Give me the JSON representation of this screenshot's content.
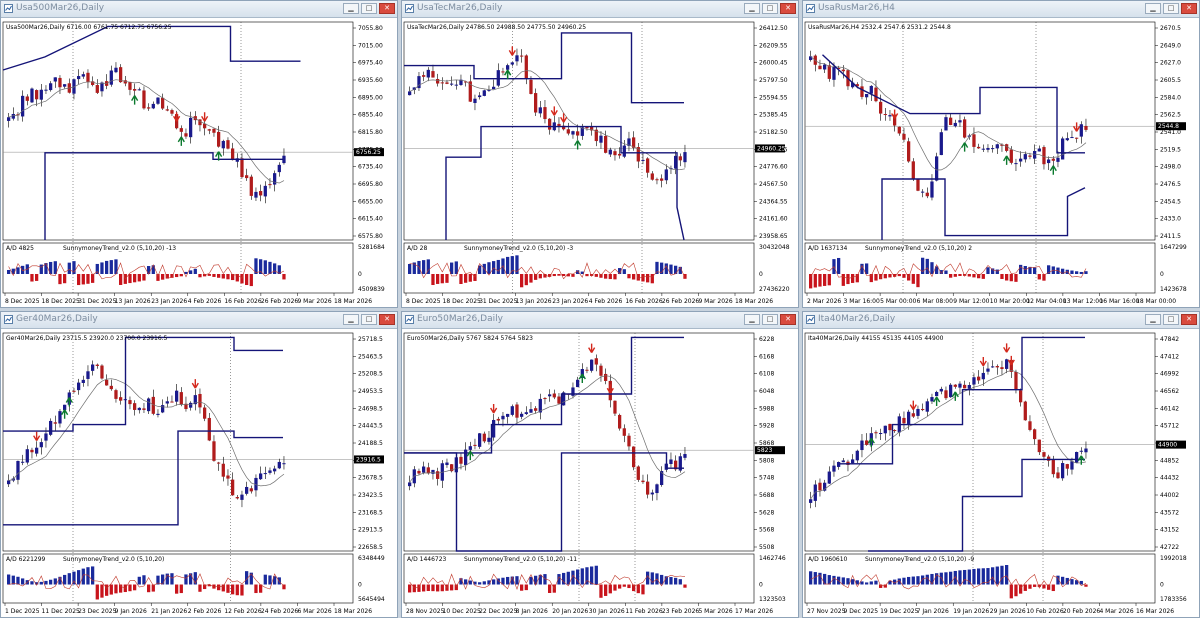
{
  "windows": [
    {
      "title": "Usa500Mar26,Daily",
      "info": "Usa500Mar26,Daily  6716.00 6761.75 6712.75 6756.25",
      "ind_label": "A/D 4825",
      "ind_name": "SunnymoneyTrend_v2.0 (5,10,20) -13",
      "price_labels": [
        "7055.80",
        "7015.00",
        "6975.40",
        "6935.60",
        "6895.00",
        "6855.40",
        "6815.80",
        "6775.00",
        "6735.40",
        "6695.80",
        "6655.00",
        "6615.40",
        "6575.80"
      ],
      "current_price": "6756.25",
      "ind_scale": [
        "5281684",
        "0",
        "4509839"
      ],
      "dates": [
        "8 Dec 2025",
        "18 Dec 2025",
        "31 Dec 2025",
        "13 Jan 2026",
        "23 Jan 2026",
        "4 Feb 2026",
        "16 Feb 2026",
        "26 Feb 2026",
        "9 Mar 2026",
        "18 Mar 2026"
      ]
    },
    {
      "title": "UsaTecMar26,Daily",
      "info": "UsaTecMar26,Daily  24786.50 24988.50 24775.50 24960.25",
      "ind_label": "A/D 28",
      "ind_name": "SunnymoneyTrend_v2.0 (5,10,20) -3",
      "price_labels": [
        "26412.50",
        "26209.55",
        "26000.45",
        "25797.50",
        "25594.55",
        "25385.45",
        "25182.50",
        "24979.55",
        "24776.60",
        "24567.50",
        "24364.55",
        "24161.60",
        "23958.65"
      ],
      "current_price": "24960.25",
      "ind_scale": [
        "30432048",
        "0",
        "27436220"
      ],
      "dates": [
        "8 Dec 2025",
        "18 Dec 2025",
        "31 Dec 2025",
        "13 Jan 2026",
        "23 Jan 2026",
        "4 Feb 2026",
        "16 Feb 2026",
        "26 Feb 2026",
        "9 Mar 2026",
        "18 Mar 2026"
      ]
    },
    {
      "title": "UsaRusMar26,H4",
      "info": "UsaRusMar26,H4  2532.4 2547.6 2531.2 2544.8",
      "ind_label": "A/D 1637134",
      "ind_name": "SunnymoneyTrend_v2.0 (5,10,20) 2",
      "price_labels": [
        "2670.5",
        "2649.0",
        "2627.0",
        "2605.5",
        "2584.0",
        "2562.5",
        "2541.0",
        "2519.5",
        "2498.0",
        "2476.5",
        "2454.5",
        "2433.0",
        "2411.5"
      ],
      "current_price": "2544.8",
      "ind_scale": [
        "1647299",
        "0",
        "1423678"
      ],
      "dates": [
        "2 Mar 2026",
        "3 Mar 16:00",
        "5 Mar 00:00",
        "6 Mar 08:00",
        "9 Mar 12:00",
        "10 Mar 20:00",
        "12 Mar 04:00",
        "13 Mar 12:00",
        "16 Mar 16:00",
        "18 Mar 00:00"
      ]
    },
    {
      "title": "Ger40Mar26,Daily",
      "info": "Ger40Mar26,Daily  23715.5 23920.0 23700.0 23916.5",
      "ind_label": "A/D 6221299",
      "ind_name": "SunnymoneyTrend_v2.0 (5,10,20)",
      "price_labels": [
        "25718.5",
        "25463.5",
        "25208.5",
        "24953.5",
        "24698.5",
        "24443.5",
        "24188.5",
        "23933.5",
        "23678.5",
        "23423.5",
        "23168.5",
        "22913.5",
        "22658.5"
      ],
      "current_price": "23916.5",
      "ind_scale": [
        "6348449",
        "0",
        "5645494"
      ],
      "dates": [
        "1 Dec 2025",
        "11 Dec 2025",
        "23 Dec 2025",
        "9 Jan 2026",
        "21 Jan 2026",
        "2 Feb 2026",
        "12 Feb 2026",
        "24 Feb 2026",
        "6 Mar 2026",
        "18 Mar 2026"
      ]
    },
    {
      "title": "Euro50Mar26,Daily",
      "info": "Euro50Mar26,Daily  5767 5824 5764 5823",
      "ind_label": "A/D 1446723",
      "ind_name": "SunnymoneyTrend_v2.0 (5,10,20) -11",
      "price_labels": [
        "6228",
        "6168",
        "6108",
        "6048",
        "5988",
        "5928",
        "5868",
        "5808",
        "5748",
        "5688",
        "5628",
        "5568",
        "5508"
      ],
      "current_price": "5823",
      "ind_scale": [
        "1462746",
        "0",
        "1323503"
      ],
      "dates": [
        "28 Nov 2025",
        "10 Dec 2025",
        "22 Dec 2025",
        "8 Jan 2026",
        "20 Jan 2026",
        "30 Jan 2026",
        "11 Feb 2026",
        "23 Feb 2026",
        "5 Mar 2026",
        "17 Mar 2026"
      ]
    },
    {
      "title": "Ita40Mar26,Daily",
      "info": "Ita40Mar26,Daily  44155 45135 44105 44900",
      "ind_label": "A/D 1960610",
      "ind_name": "SunnymoneyTrend_v2.0 (5,10,20) -9",
      "price_labels": [
        "47842",
        "47412",
        "46992",
        "46562",
        "46142",
        "45712",
        "45282",
        "44852",
        "44432",
        "44002",
        "43572",
        "43152",
        "42722"
      ],
      "current_price": "44900",
      "ind_scale": [
        "1992018",
        "0",
        "1783356"
      ],
      "dates": [
        "27 Nov 2025",
        "9 Dec 2025",
        "19 Dec 2025",
        "7 Jan 2026",
        "19 Jan 2026",
        "29 Jan 2026",
        "10 Feb 2026",
        "20 Feb 2026",
        "4 Mar 2026",
        "16 Mar 2026"
      ]
    }
  ],
  "colors": {
    "bull": "#1a1a8c",
    "bear": "#b01c1c",
    "channel": "#141478",
    "ma": "#6e6e6e",
    "ind_line": "#c0392b",
    "ind_up": "#1a2a9c",
    "ind_down": "#c8141c",
    "arrow_up": "#0b7a2e",
    "arrow_down": "#d4281c"
  },
  "icons": {
    "window_icon": "chart-window-icon",
    "minimize": "minimize-icon",
    "maximize": "maximize-icon",
    "close": "close-icon"
  }
}
